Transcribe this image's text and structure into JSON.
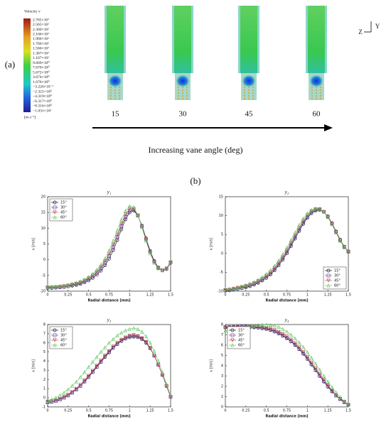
{
  "panel_a": {
    "label": "(a)",
    "colorbar": {
      "title": "Velocity v",
      "labels": [
        "2.765×10¹",
        "2.565×10¹",
        "2.366×10¹",
        "2.166×10¹",
        "1.966×10¹",
        "1.766×10¹",
        "1.566×10¹",
        "1.367×10¹",
        "1.167×10¹",
        "9.669×10⁰",
        "7.670×10⁰",
        "5.672×10⁰",
        "3.674×10⁰",
        "1.676×10⁰",
        "−3.226×10⁻¹",
        "−2.321×10⁰",
        "−4.319×10⁰",
        "−6.317×10⁰",
        "−8.316×10⁰",
        "−1.031×10¹"
      ],
      "unit": "[m s⁻¹]"
    },
    "angles": [
      "15",
      "30",
      "45",
      "60"
    ],
    "arrow_label": "Increasing vane angle (deg)",
    "axes": {
      "y": "Y",
      "z": "Z"
    }
  },
  "panel_b_label": "(b)",
  "chart_data": [
    {
      "type": "line",
      "title": "y₁",
      "xlabel": "Radial distance [mm]",
      "ylabel": "v [m/s]",
      "x": [
        0,
        0.05,
        0.1,
        0.15,
        0.2,
        0.25,
        0.3,
        0.35,
        0.4,
        0.45,
        0.5,
        0.55,
        0.6,
        0.65,
        0.7,
        0.75,
        0.8,
        0.85,
        0.9,
        0.95,
        1,
        1.05,
        1.1,
        1.15,
        1.2,
        1.25,
        1.3,
        1.35,
        1.4,
        1.45,
        1.5
      ],
      "xlim": [
        0,
        1.5
      ],
      "xticks": [
        0,
        0.25,
        0.5,
        0.75,
        1,
        1.25,
        1.5
      ],
      "ylim": [
        -10,
        20
      ],
      "yticks": [
        -10,
        -5,
        0,
        5,
        10,
        15,
        20
      ],
      "legend": "upper left",
      "series": [
        {
          "name": "15°",
          "color": "#000000",
          "marker": "o",
          "values": [
            -9,
            -9,
            -8.9,
            -8.8,
            -8.7,
            -8.5,
            -8.3,
            -8,
            -7.7,
            -7.2,
            -6.6,
            -5.8,
            -4.8,
            -3.5,
            -1.8,
            0.3,
            3,
            6.2,
            9.6,
            12.8,
            15,
            15.6,
            14,
            10.8,
            6.8,
            2.8,
            -0.4,
            -2.5,
            -3.4,
            -3,
            -1
          ]
        },
        {
          "name": "30°",
          "color": "#5a3fa8",
          "marker": "s",
          "values": [
            -8.9,
            -8.9,
            -8.8,
            -8.7,
            -8.6,
            -8.4,
            -8.1,
            -7.8,
            -7.4,
            -6.9,
            -6.2,
            -5.3,
            -4.2,
            -2.8,
            -1,
            1.2,
            4,
            7.2,
            10.6,
            13.6,
            15.6,
            15.9,
            14,
            10.6,
            6.5,
            2.5,
            -0.6,
            -2.6,
            -3.4,
            -2.9,
            -0.9
          ]
        },
        {
          "name": "45°",
          "color": "#b8383a",
          "marker": "v",
          "values": [
            -8.8,
            -8.8,
            -8.7,
            -8.6,
            -8.4,
            -8.2,
            -7.9,
            -7.6,
            -7.2,
            -6.6,
            -5.9,
            -5,
            -3.8,
            -2.3,
            -0.4,
            1.9,
            4.8,
            8,
            11.4,
            14.4,
            16.2,
            16.2,
            14.1,
            10.5,
            6.3,
            2.3,
            -0.8,
            -2.7,
            -3.4,
            -2.8,
            -0.8
          ]
        },
        {
          "name": "60°",
          "color": "#5cc85c",
          "marker": "^",
          "values": [
            -8.6,
            -8.6,
            -8.5,
            -8.4,
            -8.2,
            -8,
            -7.7,
            -7.3,
            -6.9,
            -6.3,
            -5.5,
            -4.5,
            -3.2,
            -1.6,
            0.4,
            2.9,
            6,
            9.3,
            12.7,
            15.5,
            17,
            16.6,
            14.2,
            10.3,
            6,
            2,
            -1,
            -2.8,
            -3.4,
            -2.7,
            -0.7
          ]
        }
      ]
    },
    {
      "type": "line",
      "title": "y₂",
      "xlabel": "Radial distance [mm]",
      "ylabel": "v [m/s]",
      "x": [
        0,
        0.05,
        0.1,
        0.15,
        0.2,
        0.25,
        0.3,
        0.35,
        0.4,
        0.45,
        0.5,
        0.55,
        0.6,
        0.65,
        0.7,
        0.75,
        0.8,
        0.85,
        0.9,
        0.95,
        1,
        1.05,
        1.1,
        1.15,
        1.2,
        1.25,
        1.3,
        1.35,
        1.4,
        1.45,
        1.5
      ],
      "xlim": [
        0,
        1.5
      ],
      "xticks": [
        0,
        0.25,
        0.5,
        0.75,
        1,
        1.25,
        1.5
      ],
      "ylim": [
        -10,
        15
      ],
      "yticks": [
        -10,
        -5,
        0,
        5,
        10,
        15
      ],
      "legend": "lower right",
      "series": [
        {
          "name": "15°",
          "color": "#000000",
          "marker": "o",
          "values": [
            -9.9,
            -9.8,
            -9.6,
            -9.4,
            -9.2,
            -9,
            -8.7,
            -8.3,
            -7.8,
            -7.2,
            -6.5,
            -5.6,
            -4.5,
            -3.2,
            -1.7,
            0,
            1.9,
            3.9,
            5.9,
            7.8,
            9.4,
            10.6,
            11.3,
            11.5,
            11,
            9.8,
            8,
            5.8,
            3.6,
            1.8,
            0.5
          ]
        },
        {
          "name": "30°",
          "color": "#5a3fa8",
          "marker": "s",
          "values": [
            -9.8,
            -9.7,
            -9.5,
            -9.3,
            -9.1,
            -8.8,
            -8.5,
            -8.1,
            -7.6,
            -7,
            -6.2,
            -5.3,
            -4.2,
            -2.9,
            -1.3,
            0.4,
            2.3,
            4.3,
            6.3,
            8.1,
            9.7,
            10.9,
            11.5,
            11.6,
            11,
            9.7,
            7.9,
            5.7,
            3.5,
            1.7,
            0.5
          ]
        },
        {
          "name": "45°",
          "color": "#b8383a",
          "marker": "v",
          "values": [
            -9.7,
            -9.6,
            -9.4,
            -9.1,
            -8.9,
            -8.6,
            -8.3,
            -7.9,
            -7.3,
            -6.7,
            -5.9,
            -5,
            -3.8,
            -2.5,
            -0.9,
            0.8,
            2.8,
            4.8,
            6.8,
            8.6,
            10.1,
            11.2,
            11.7,
            11.7,
            11,
            9.6,
            7.8,
            5.6,
            3.4,
            1.7,
            0.4
          ]
        },
        {
          "name": "60°",
          "color": "#5cc85c",
          "marker": "^",
          "values": [
            -9.5,
            -9.4,
            -9.2,
            -9,
            -8.7,
            -8.4,
            -8,
            -7.6,
            -7,
            -6.3,
            -5.5,
            -4.5,
            -3.3,
            -1.9,
            -0.3,
            1.5,
            3.5,
            5.5,
            7.5,
            9.2,
            10.6,
            11.5,
            11.9,
            11.8,
            11,
            9.6,
            7.7,
            5.5,
            3.3,
            1.6,
            0.4
          ]
        }
      ]
    },
    {
      "type": "line",
      "title": "y₃",
      "xlabel": "Radial distance [mm]",
      "ylabel": "v [m/s]",
      "x": [
        0,
        0.05,
        0.1,
        0.15,
        0.2,
        0.25,
        0.3,
        0.35,
        0.4,
        0.45,
        0.5,
        0.55,
        0.6,
        0.65,
        0.7,
        0.75,
        0.8,
        0.85,
        0.9,
        0.95,
        1,
        1.05,
        1.1,
        1.15,
        1.2,
        1.25,
        1.3,
        1.35,
        1.4,
        1.45,
        1.5
      ],
      "xlim": [
        0,
        1.5
      ],
      "xticks": [
        0,
        0.25,
        0.5,
        0.75,
        1,
        1.25,
        1.5
      ],
      "ylim": [
        -1,
        8
      ],
      "yticks": [
        -1,
        0,
        1,
        2,
        3,
        4,
        5,
        6,
        7,
        8
      ],
      "legend": "upper left",
      "series": [
        {
          "name": "15°",
          "color": "#000000",
          "marker": "o",
          "values": [
            -0.5,
            -0.45,
            -0.35,
            -0.2,
            0,
            0.25,
            0.55,
            0.9,
            1.3,
            1.75,
            2.25,
            2.8,
            3.35,
            3.9,
            4.45,
            4.95,
            5.45,
            5.85,
            6.2,
            6.45,
            6.6,
            6.65,
            6.6,
            6.4,
            6,
            5.4,
            4.6,
            3.6,
            2.5,
            1.3,
            0.1
          ]
        },
        {
          "name": "30°",
          "color": "#5a3fa8",
          "marker": "s",
          "values": [
            -0.5,
            -0.45,
            -0.35,
            -0.2,
            0,
            0.25,
            0.55,
            0.9,
            1.3,
            1.8,
            2.3,
            2.85,
            3.4,
            3.95,
            4.5,
            5,
            5.5,
            5.9,
            6.25,
            6.5,
            6.7,
            6.75,
            6.7,
            6.45,
            6.05,
            5.45,
            4.6,
            3.6,
            2.5,
            1.3,
            0.1
          ]
        },
        {
          "name": "45°",
          "color": "#b8383a",
          "marker": "v",
          "values": [
            -0.4,
            -0.35,
            -0.25,
            -0.1,
            0.1,
            0.35,
            0.65,
            1,
            1.4,
            1.9,
            2.4,
            2.95,
            3.5,
            4.05,
            4.6,
            5.1,
            5.6,
            6,
            6.35,
            6.6,
            6.8,
            6.85,
            6.75,
            6.5,
            6.1,
            5.45,
            4.6,
            3.6,
            2.5,
            1.3,
            0.1
          ]
        },
        {
          "name": "60°",
          "color": "#5cc85c",
          "marker": "^",
          "values": [
            -0.3,
            -0.2,
            0,
            0.25,
            0.55,
            0.9,
            1.3,
            1.75,
            2.25,
            2.8,
            3.35,
            3.9,
            4.45,
            5,
            5.5,
            6,
            6.4,
            6.8,
            7.1,
            7.35,
            7.5,
            7.6,
            7.5,
            7.2,
            6.7,
            6,
            5.1,
            4,
            2.8,
            1.5,
            0.2
          ]
        }
      ]
    },
    {
      "type": "line",
      "title": "y₄",
      "xlabel": "Radial distance [mm]",
      "ylabel": "v [m/s]",
      "x": [
        0,
        0.05,
        0.1,
        0.15,
        0.2,
        0.25,
        0.3,
        0.35,
        0.4,
        0.45,
        0.5,
        0.55,
        0.6,
        0.65,
        0.7,
        0.75,
        0.8,
        0.85,
        0.9,
        0.95,
        1,
        1.05,
        1.1,
        1.15,
        1.2,
        1.25,
        1.3,
        1.35,
        1.4,
        1.45,
        1.5
      ],
      "xlim": [
        0,
        1.5
      ],
      "xticks": [
        0,
        0.25,
        0.5,
        0.75,
        1,
        1.25,
        1.5
      ],
      "ylim": [
        0,
        8
      ],
      "yticks": [
        0,
        1,
        2,
        3,
        4,
        5,
        6,
        7,
        8
      ],
      "legend": "upper left",
      "series": [
        {
          "name": "15°",
          "color": "#000000",
          "marker": "o",
          "values": [
            7.7,
            7.72,
            7.74,
            7.75,
            7.75,
            7.75,
            7.74,
            7.72,
            7.68,
            7.62,
            7.55,
            7.45,
            7.3,
            7.12,
            6.9,
            6.65,
            6.35,
            6,
            5.6,
            5.15,
            4.65,
            4.1,
            3.55,
            3,
            2.45,
            1.95,
            1.5,
            1.1,
            0.75,
            0.45,
            0.2
          ]
        },
        {
          "name": "30°",
          "color": "#5a3fa8",
          "marker": "s",
          "values": [
            7.75,
            7.77,
            7.78,
            7.79,
            7.8,
            7.8,
            7.79,
            7.77,
            7.73,
            7.67,
            7.6,
            7.5,
            7.35,
            7.17,
            6.95,
            6.7,
            6.4,
            6.05,
            5.65,
            5.2,
            4.7,
            4.15,
            3.6,
            3.05,
            2.5,
            2,
            1.55,
            1.1,
            0.75,
            0.45,
            0.2
          ]
        },
        {
          "name": "45°",
          "color": "#b8383a",
          "marker": "v",
          "values": [
            7.6,
            7.63,
            7.66,
            7.7,
            7.73,
            7.76,
            7.78,
            7.79,
            7.78,
            7.75,
            7.7,
            7.6,
            7.47,
            7.3,
            7.1,
            6.85,
            6.55,
            6.2,
            5.8,
            5.35,
            4.85,
            4.3,
            3.75,
            3.2,
            2.65,
            2.1,
            1.6,
            1.15,
            0.8,
            0.5,
            0.2
          ]
        },
        {
          "name": "60°",
          "color": "#5cc85c",
          "marker": "^",
          "values": [
            7.4,
            7.45,
            7.52,
            7.6,
            7.68,
            7.76,
            7.84,
            7.9,
            7.95,
            7.98,
            7.98,
            7.95,
            7.88,
            7.75,
            7.55,
            7.3,
            7,
            6.65,
            6.25,
            5.8,
            5.3,
            4.75,
            4.2,
            3.6,
            3,
            2.45,
            1.9,
            1.4,
            0.95,
            0.55,
            0.2
          ]
        }
      ]
    }
  ]
}
